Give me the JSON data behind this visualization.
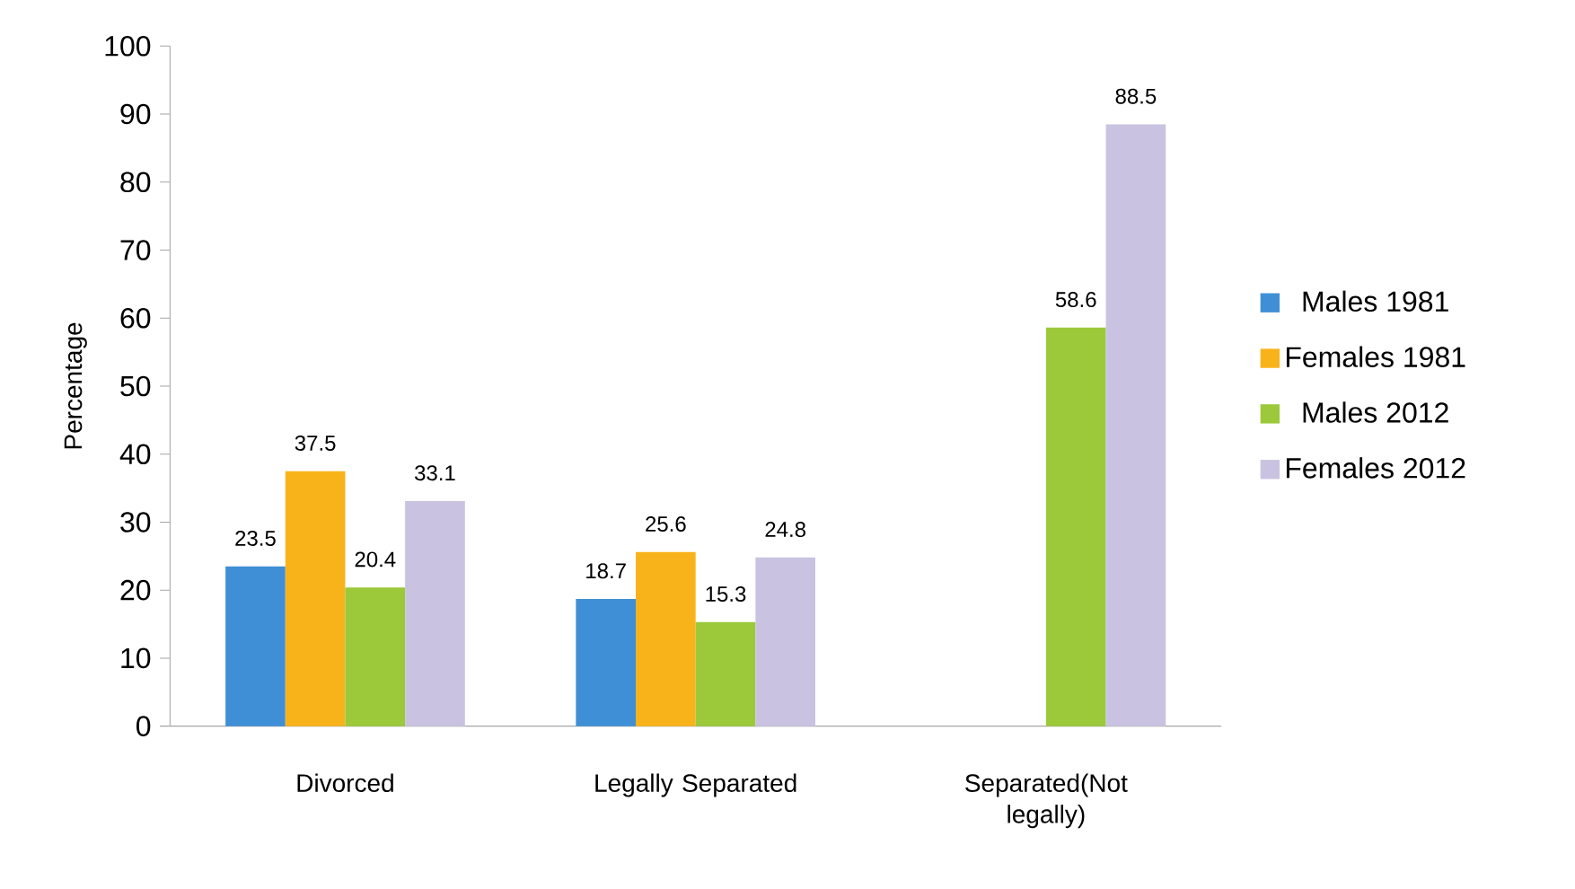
{
  "chart_data": {
    "type": "bar",
    "ylabel": "Percentage",
    "categories": [
      "Divorced",
      "Legally Separated",
      "Separated(Not legally)"
    ],
    "series": [
      {
        "name": "Males 1981",
        "color": "#3f8fd6",
        "values": [
          23.5,
          18.7,
          null
        ]
      },
      {
        "name": "Females 1981",
        "color": "#f9b31a",
        "values": [
          37.5,
          25.6,
          null
        ]
      },
      {
        "name": "Males 2012",
        "color": "#9bc93a",
        "values": [
          20.4,
          15.3,
          58.6
        ]
      },
      {
        "name": "Females 2012",
        "color": "#c9c3e1",
        "values": [
          33.1,
          24.8,
          88.5
        ]
      }
    ],
    "ylim": [
      0,
      100
    ],
    "yticks": [
      0,
      10,
      20,
      30,
      40,
      50,
      60,
      70,
      80,
      90,
      100
    ],
    "data_labels": true,
    "legend": "right",
    "grid": false
  }
}
